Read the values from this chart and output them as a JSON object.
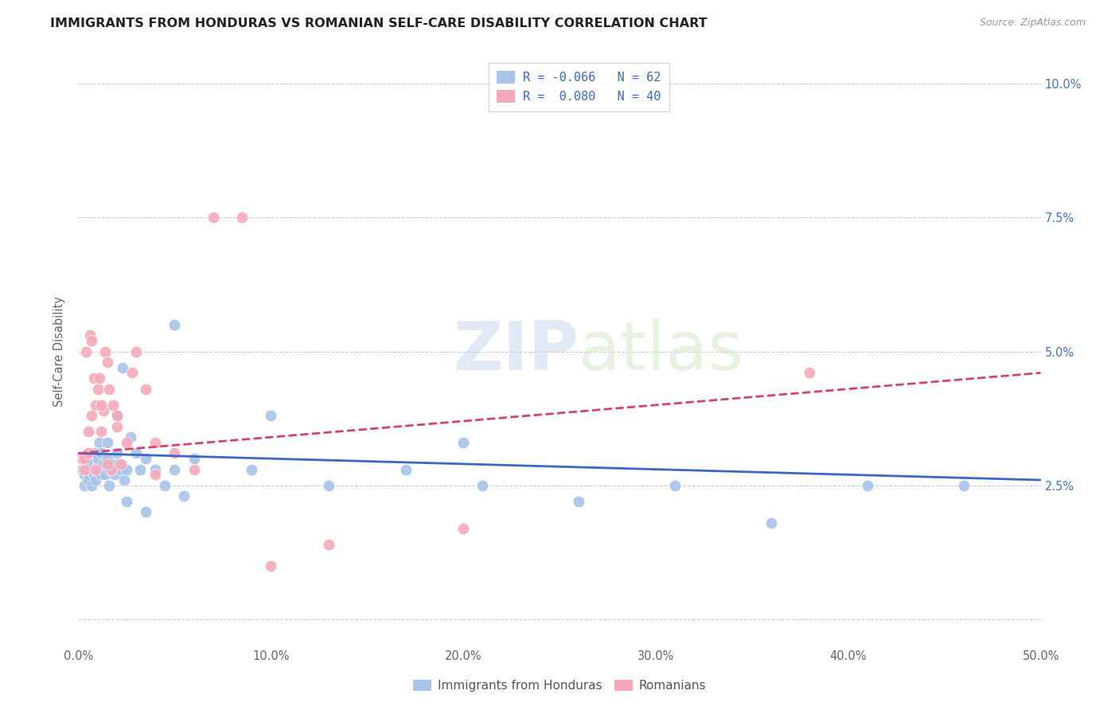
{
  "title": "IMMIGRANTS FROM HONDURAS VS ROMANIAN SELF-CARE DISABILITY CORRELATION CHART",
  "source": "Source: ZipAtlas.com",
  "ylabel": "Self-Care Disability",
  "xlim": [
    0.0,
    0.5
  ],
  "ylim": [
    -0.005,
    0.105
  ],
  "legend_label1": "Immigrants from Honduras",
  "legend_label2": "Romanians",
  "color_blue": "#a8c4e8",
  "color_pink": "#f5aabb",
  "line_blue": "#3a68c4",
  "line_pink": "#d84070",
  "watermark_zip": "ZIP",
  "watermark_atlas": "atlas",
  "blue_scatter_x": [
    0.002,
    0.003,
    0.003,
    0.004,
    0.004,
    0.005,
    0.005,
    0.005,
    0.006,
    0.006,
    0.007,
    0.007,
    0.008,
    0.008,
    0.009,
    0.009,
    0.01,
    0.01,
    0.011,
    0.011,
    0.012,
    0.012,
    0.013,
    0.013,
    0.014,
    0.015,
    0.015,
    0.016,
    0.016,
    0.017,
    0.018,
    0.019,
    0.02,
    0.021,
    0.022,
    0.023,
    0.024,
    0.025,
    0.027,
    0.03,
    0.032,
    0.035,
    0.04,
    0.045,
    0.05,
    0.055,
    0.06,
    0.09,
    0.13,
    0.17,
    0.21,
    0.26,
    0.31,
    0.36,
    0.41,
    0.46,
    0.02,
    0.025,
    0.035,
    0.05,
    0.1,
    0.2
  ],
  "blue_scatter_y": [
    0.028,
    0.027,
    0.025,
    0.028,
    0.03,
    0.027,
    0.029,
    0.026,
    0.028,
    0.03,
    0.025,
    0.029,
    0.027,
    0.031,
    0.026,
    0.028,
    0.029,
    0.03,
    0.028,
    0.033,
    0.027,
    0.031,
    0.028,
    0.029,
    0.027,
    0.03,
    0.033,
    0.028,
    0.025,
    0.028,
    0.029,
    0.027,
    0.038,
    0.029,
    0.028,
    0.047,
    0.026,
    0.028,
    0.034,
    0.031,
    0.028,
    0.03,
    0.028,
    0.025,
    0.028,
    0.023,
    0.03,
    0.028,
    0.025,
    0.028,
    0.025,
    0.022,
    0.025,
    0.018,
    0.025,
    0.025,
    0.031,
    0.022,
    0.02,
    0.055,
    0.038,
    0.033
  ],
  "pink_scatter_x": [
    0.002,
    0.003,
    0.004,
    0.005,
    0.006,
    0.007,
    0.008,
    0.009,
    0.01,
    0.011,
    0.012,
    0.013,
    0.014,
    0.015,
    0.016,
    0.017,
    0.018,
    0.02,
    0.022,
    0.025,
    0.028,
    0.03,
    0.035,
    0.04,
    0.05,
    0.06,
    0.07,
    0.085,
    0.13,
    0.2,
    0.003,
    0.005,
    0.007,
    0.009,
    0.012,
    0.015,
    0.02,
    0.04,
    0.1,
    0.38
  ],
  "pink_scatter_y": [
    0.03,
    0.028,
    0.05,
    0.035,
    0.053,
    0.052,
    0.045,
    0.04,
    0.043,
    0.045,
    0.035,
    0.039,
    0.05,
    0.048,
    0.043,
    0.028,
    0.04,
    0.036,
    0.029,
    0.033,
    0.046,
    0.05,
    0.043,
    0.033,
    0.031,
    0.028,
    0.075,
    0.075,
    0.014,
    0.017,
    0.03,
    0.031,
    0.038,
    0.028,
    0.04,
    0.029,
    0.038,
    0.027,
    0.01,
    0.046
  ],
  "blue_line_x": [
    0.0,
    0.5
  ],
  "blue_line_y": [
    0.031,
    0.026
  ],
  "pink_line_x": [
    0.0,
    0.5
  ],
  "pink_line_y": [
    0.031,
    0.046
  ]
}
